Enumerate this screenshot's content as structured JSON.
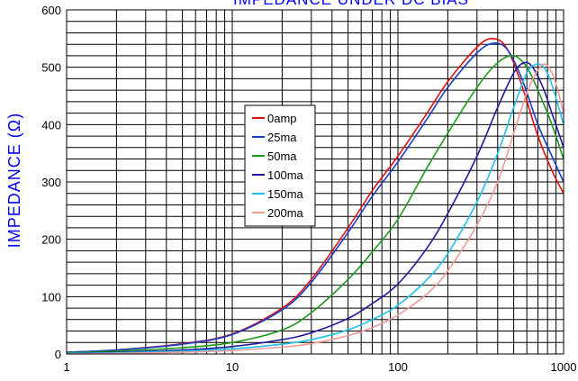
{
  "chart_data": {
    "type": "line",
    "title": "IMPEDANCE UNDER DC BIAS",
    "ylabel": "IMPEDANCE (Ω)",
    "xlabel": "",
    "xscale": "log",
    "xlim": [
      1,
      1000
    ],
    "ylim": [
      0,
      600
    ],
    "xticks": [
      1,
      10,
      100,
      1000
    ],
    "yticks": [
      0,
      100,
      200,
      300,
      400,
      500,
      600
    ],
    "grid": true,
    "legend_position": "center-left",
    "title_color": "#0000ff",
    "ylabel_color": "#0000ff",
    "series": [
      {
        "name": "0amp",
        "color": "#e01010",
        "x": [
          1,
          2,
          5,
          10,
          20,
          30,
          50,
          70,
          100,
          150,
          200,
          300,
          370,
          450,
          550,
          700,
          850,
          1000
        ],
        "y": [
          3,
          7,
          18,
          35,
          80,
          130,
          220,
          285,
          345,
          420,
          475,
          535,
          550,
          535,
          475,
          380,
          320,
          280
        ]
      },
      {
        "name": "25ma",
        "color": "#1a3cc8",
        "x": [
          1,
          2,
          5,
          10,
          20,
          30,
          50,
          70,
          100,
          150,
          200,
          300,
          380,
          460,
          560,
          700,
          850,
          1000
        ],
        "y": [
          3,
          7,
          17,
          34,
          77,
          125,
          212,
          275,
          335,
          410,
          465,
          525,
          542,
          530,
          480,
          400,
          345,
          300
        ]
      },
      {
        "name": "50ma",
        "color": "#1a9a1a",
        "x": [
          1,
          2,
          5,
          10,
          20,
          30,
          50,
          70,
          100,
          150,
          200,
          300,
          400,
          500,
          600,
          700,
          850,
          1000
        ],
        "y": [
          2,
          5,
          11,
          20,
          42,
          72,
          130,
          178,
          235,
          325,
          385,
          465,
          508,
          520,
          500,
          460,
          400,
          340
        ]
      },
      {
        "name": "100ma",
        "color": "#201a9a",
        "x": [
          1,
          2,
          5,
          10,
          20,
          30,
          50,
          70,
          100,
          150,
          200,
          300,
          400,
          500,
          580,
          650,
          750,
          850,
          1000
        ],
        "y": [
          1,
          3,
          7,
          13,
          25,
          37,
          62,
          88,
          122,
          185,
          245,
          345,
          430,
          490,
          508,
          500,
          465,
          420,
          360
        ]
      },
      {
        "name": "150ma",
        "color": "#20c0e8",
        "x": [
          1,
          2,
          5,
          10,
          20,
          30,
          50,
          70,
          100,
          150,
          200,
          300,
          400,
          500,
          600,
          680,
          760,
          850,
          1000
        ],
        "y": [
          1,
          2,
          5,
          9,
          17,
          25,
          42,
          60,
          85,
          130,
          175,
          265,
          350,
          430,
          490,
          505,
          500,
          470,
          400
        ]
      },
      {
        "name": "200ma",
        "color": "#f09a9a",
        "x": [
          1,
          2,
          5,
          10,
          20,
          30,
          50,
          70,
          100,
          150,
          200,
          300,
          400,
          500,
          600,
          700,
          780,
          880,
          1000
        ],
        "y": [
          0,
          1,
          3,
          6,
          12,
          18,
          32,
          46,
          68,
          105,
          145,
          225,
          300,
          385,
          455,
          495,
          505,
          480,
          420
        ]
      }
    ]
  }
}
